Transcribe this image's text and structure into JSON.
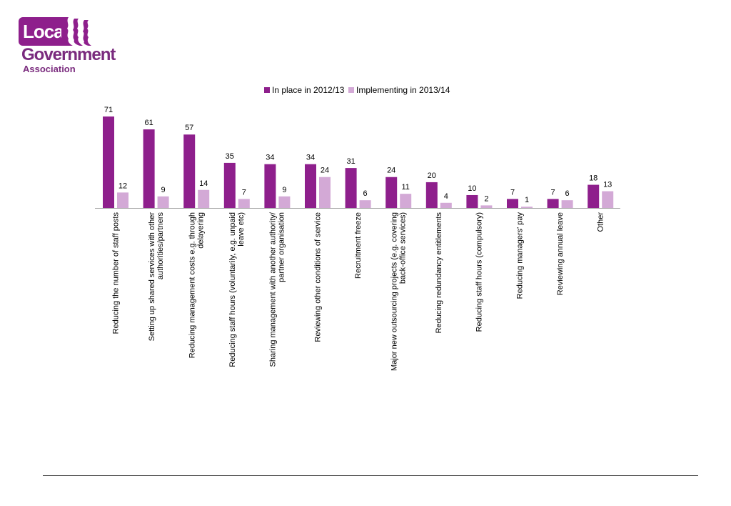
{
  "logo": {
    "line1": "Local",
    "line2": "Government",
    "line3": "Association"
  },
  "colors": {
    "primary": "#8e1f8c",
    "secondary": "#d3a9d6",
    "axis": "#a6a6a6",
    "text": "#000000"
  },
  "chart_data": {
    "type": "bar",
    "title": "",
    "xlabel": "",
    "ylabel": "",
    "ylim": [
      0,
      80
    ],
    "grid": false,
    "legend": "top-center",
    "categories": [
      "Reducing the number of staff posts",
      "Setting up shared services with other authorities/partners",
      "Reducing management costs e.g. through delayering",
      "Reducing staff hours (voluntarily, e.g. unpaid leave etc)",
      "Sharing management with another authority/ partner organisation",
      "Reviewing other conditions of service",
      "Recruitment freeze",
      "Major new outsourcing projects (e.g. covering back-office services)",
      "Reducing redundancy entitlements",
      "Reducing staff hours (compulsory)",
      "Reducing managers' pay",
      "Reviewing annual leave",
      "Other"
    ],
    "series": [
      {
        "name": "In place in 2012/13",
        "values": [
          71,
          61,
          57,
          35,
          34,
          34,
          31,
          24,
          20,
          10,
          7,
          7,
          18
        ]
      },
      {
        "name": "Implementing in 2013/14",
        "values": [
          12,
          9,
          14,
          7,
          9,
          24,
          6,
          11,
          4,
          2,
          1,
          6,
          13
        ]
      }
    ]
  }
}
